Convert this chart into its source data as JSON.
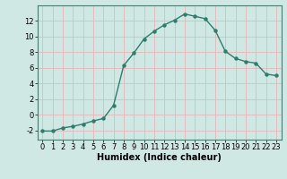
{
  "x": [
    0,
    1,
    2,
    3,
    4,
    5,
    6,
    7,
    8,
    9,
    10,
    11,
    12,
    13,
    14,
    15,
    16,
    17,
    18,
    19,
    20,
    21,
    22,
    23
  ],
  "y": [
    -2.1,
    -2.1,
    -1.7,
    -1.5,
    -1.2,
    -0.8,
    -0.5,
    1.2,
    6.3,
    7.9,
    9.7,
    10.7,
    11.5,
    12.1,
    12.9,
    12.6,
    12.3,
    10.8,
    8.1,
    7.2,
    6.8,
    6.6,
    5.2,
    5.0
  ],
  "line_color": "#2e7d6e",
  "marker": "o",
  "marker_size": 2.2,
  "line_width": 1.0,
  "bg_color": "#cfe8e4",
  "grid_color": "#e8b4b8",
  "xlabel": "Humidex (Indice chaleur)",
  "xlabel_fontsize": 7,
  "ylabel_ticks": [
    -2,
    0,
    2,
    4,
    6,
    8,
    10,
    12
  ],
  "xtick_labels": [
    "0",
    "1",
    "2",
    "3",
    "4",
    "5",
    "6",
    "7",
    "8",
    "9",
    "10",
    "11",
    "12",
    "13",
    "14",
    "15",
    "16",
    "17",
    "18",
    "19",
    "20",
    "21",
    "22",
    "23"
  ],
  "xlim": [
    -0.5,
    23.5
  ],
  "ylim": [
    -3.2,
    14.0
  ],
  "tick_fontsize": 6.0
}
